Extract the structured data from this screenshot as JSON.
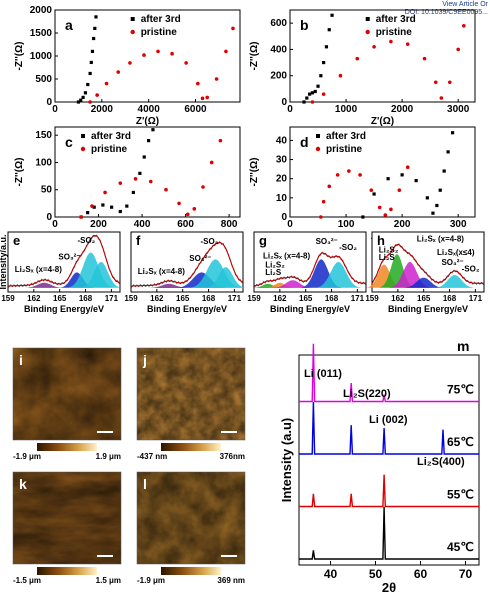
{
  "header": {
    "link1": "View Article Or",
    "link2": "DOI: 10.1039/C9EE0095..."
  },
  "colors": {
    "after": "#000000",
    "pristine": "#e00000"
  },
  "chart_data": [
    {
      "panel": "a",
      "type": "scatter",
      "xlabel": "Z'(Ω)",
      "ylabel": "-Z''(Ω)",
      "xticks": [
        "0",
        "2000",
        "4000",
        "6000"
      ],
      "yticks": [
        "0",
        "500",
        "1000",
        "1500",
        "2000"
      ],
      "xlim": [
        0,
        7900
      ],
      "ylim": [
        0,
        2000
      ],
      "legend": "top-center",
      "series": [
        {
          "name": "after 3rd",
          "style": "after",
          "x": [
            1000,
            1100,
            1200,
            1300,
            1400,
            1500,
            1550,
            1600,
            1650,
            1700,
            1750
          ],
          "y": [
            0,
            40,
            100,
            200,
            380,
            620,
            860,
            1100,
            1380,
            1600,
            1850
          ]
        },
        {
          "name": "pristine",
          "style": "pristine",
          "x": [
            1500,
            1800,
            2200,
            2700,
            3200,
            3800,
            4400,
            5000,
            5600,
            6100,
            6300,
            6500,
            6900,
            7300,
            7600
          ],
          "y": [
            0,
            150,
            400,
            650,
            850,
            1020,
            1100,
            1050,
            850,
            400,
            80,
            100,
            500,
            1100,
            1600
          ]
        }
      ]
    },
    {
      "panel": "b",
      "type": "scatter",
      "xlabel": "Z'(Ω)",
      "ylabel": "-Z''(Ω)",
      "xticks": [
        "0",
        "1000",
        "2000",
        "3000"
      ],
      "yticks": [
        "0",
        "200",
        "400",
        "600"
      ],
      "xlim": [
        0,
        3300
      ],
      "ylim": [
        0,
        700
      ],
      "legend": "top-center",
      "series": [
        {
          "name": "after 3rd",
          "style": "after",
          "x": [
            250,
            300,
            350,
            400,
            450,
            500,
            550,
            600,
            650,
            700,
            750
          ],
          "y": [
            0,
            30,
            60,
            70,
            80,
            120,
            200,
            300,
            420,
            550,
            660
          ]
        },
        {
          "name": "pristine",
          "style": "pristine",
          "x": [
            400,
            600,
            900,
            1200,
            1500,
            1800,
            2100,
            2400,
            2600,
            2700,
            2850,
            3000,
            3100
          ],
          "y": [
            0,
            60,
            200,
            330,
            420,
            460,
            440,
            330,
            150,
            30,
            150,
            400,
            580
          ]
        }
      ]
    },
    {
      "panel": "c",
      "type": "scatter",
      "xlabel": "Z'(Ω)",
      "ylabel": "-Z''(Ω)",
      "xticks": [
        "0",
        "200",
        "400",
        "600",
        "800"
      ],
      "yticks": [
        "0",
        "50",
        "100",
        "150"
      ],
      "xlim": [
        0,
        850
      ],
      "ylim": [
        0,
        165
      ],
      "legend": "top-left",
      "series": [
        {
          "name": "after 3rd",
          "style": "after",
          "x": [
            120,
            150,
            180,
            220,
            260,
            300,
            330,
            360,
            390,
            410,
            430,
            450
          ],
          "y": [
            0,
            8,
            18,
            22,
            18,
            10,
            20,
            45,
            80,
            110,
            140,
            160
          ]
        },
        {
          "name": "pristine",
          "style": "pristine",
          "x": [
            120,
            170,
            230,
            300,
            370,
            440,
            510,
            570,
            610,
            640,
            680,
            720,
            760
          ],
          "y": [
            0,
            20,
            45,
            62,
            70,
            65,
            50,
            25,
            5,
            15,
            55,
            100,
            140
          ]
        }
      ]
    },
    {
      "panel": "d",
      "type": "scatter",
      "xlabel": "Z'(Ω)",
      "ylabel": "-Z''(Ω)",
      "xticks": [
        "0",
        "100",
        "200",
        "300"
      ],
      "yticks": [
        "0",
        "10",
        "20",
        "30",
        "40"
      ],
      "xlim": [
        0,
        330
      ],
      "ylim": [
        0,
        47
      ],
      "legend": "top-left",
      "series": [
        {
          "name": "after 3rd",
          "style": "after",
          "x": [
            130,
            150,
            175,
            200,
            225,
            245,
            255,
            262,
            268,
            275,
            282,
            290
          ],
          "y": [
            0,
            12,
            20,
            22,
            19,
            10,
            2,
            6,
            14,
            24,
            34,
            44
          ]
        },
        {
          "name": "pristine",
          "style": "pristine",
          "x": [
            55,
            60,
            70,
            85,
            105,
            125,
            145,
            160,
            170,
            180,
            195,
            210
          ],
          "y": [
            0,
            8,
            16,
            22,
            24,
            22,
            14,
            5,
            1,
            4,
            14,
            26
          ]
        }
      ]
    },
    {
      "panel": "e",
      "type": "line",
      "xlabel": "Binding Energy/eV",
      "ylabel": "Intensity/a.u.",
      "xticks": [
        "159",
        "162",
        "165",
        "168",
        "171"
      ],
      "xlim": [
        159,
        172
      ],
      "annotations": [
        "-SO₂",
        "SO₃²⁻",
        "Li₂Sₓ (x=4-8)"
      ],
      "peaks": [
        {
          "center": 163.2,
          "height": 0.1,
          "width": 0.8,
          "color": "#7a2a8c"
        },
        {
          "center": 167.0,
          "height": 0.3,
          "width": 0.7,
          "color": "#1428c8"
        },
        {
          "center": 168.6,
          "height": 0.68,
          "width": 0.9,
          "color": "#22c4d8"
        },
        {
          "center": 169.8,
          "height": 0.5,
          "width": 0.8,
          "color": "#22c4d8"
        }
      ]
    },
    {
      "panel": "f",
      "type": "line",
      "xlabel": "Binding Energy/eV",
      "xticks": [
        "159",
        "162",
        "165",
        "168",
        "171"
      ],
      "xlim": [
        159,
        172
      ],
      "annotations": [
        "-SO₂",
        "SO₃²⁻",
        "Li₂Sₓ (x=4-8)"
      ],
      "peaks": [
        {
          "center": 163.4,
          "height": 0.08,
          "width": 0.8,
          "color": "#7a2a8c"
        },
        {
          "center": 167.2,
          "height": 0.3,
          "width": 1.0,
          "color": "#1428c8"
        },
        {
          "center": 168.8,
          "height": 0.55,
          "width": 1.0,
          "color": "#22c4d8"
        },
        {
          "center": 170.0,
          "height": 0.4,
          "width": 0.8,
          "color": "#22c4d8"
        }
      ]
    },
    {
      "panel": "g",
      "type": "line",
      "xlabel": "Binding Energy/eV",
      "xticks": [
        "159",
        "162",
        "165",
        "168",
        "171"
      ],
      "xlim": [
        159,
        172
      ],
      "annotations": [
        "SO₃²⁻",
        "-SO₂",
        "Li₂Sₓ (x=4-8)",
        "Li₂S₂",
        "Li₂S"
      ],
      "peaks": [
        {
          "center": 160.6,
          "height": 0.08,
          "width": 0.6,
          "color": "#22aa22"
        },
        {
          "center": 162.0,
          "height": 0.1,
          "width": 0.6,
          "color": "#ee8822"
        },
        {
          "center": 163.5,
          "height": 0.15,
          "width": 0.8,
          "color": "#cc22cc"
        },
        {
          "center": 166.8,
          "height": 0.55,
          "width": 0.8,
          "color": "#1428c8"
        },
        {
          "center": 168.8,
          "height": 0.5,
          "width": 0.9,
          "color": "#22c4d8"
        }
      ]
    },
    {
      "panel": "h",
      "type": "line",
      "xlabel": "Binding Energy/eV",
      "xticks": [
        "159",
        "162",
        "165",
        "168",
        "171"
      ],
      "xlim": [
        159,
        172
      ],
      "annotations": [
        "Li₂Sₓ (x=4-8)",
        "Li₂Sₓ(x≤4)",
        "Li₂S₂",
        "Li₂S",
        "SO₃²⁻",
        "-SO₂"
      ],
      "peaks": [
        {
          "center": 160.4,
          "height": 0.45,
          "width": 0.7,
          "color": "#ee8822"
        },
        {
          "center": 161.9,
          "height": 0.65,
          "width": 0.7,
          "color": "#22aa22"
        },
        {
          "center": 163.4,
          "height": 0.5,
          "width": 0.8,
          "color": "#cc22cc"
        },
        {
          "center": 165.0,
          "height": 0.2,
          "width": 0.8,
          "color": "#1428c8"
        },
        {
          "center": 168.6,
          "height": 0.25,
          "width": 0.8,
          "color": "#22c4d8"
        }
      ]
    },
    {
      "panel": "m",
      "type": "line",
      "xlabel": "2θ",
      "ylabel": "Intensity (a.u)",
      "xticks": [
        "40",
        "50",
        "60",
        "70"
      ],
      "xlim": [
        33,
        73
      ],
      "peak_labels": [
        "Li (011)",
        "Li₂S(220)",
        "Li (002)",
        "Li₂S(400)"
      ],
      "series": [
        {
          "name": "75℃",
          "color": "#e000e0",
          "peaks": [
            {
              "x": 36.2,
              "h": 1.0
            },
            {
              "x": 44.6,
              "h": 0.32
            },
            {
              "x": 51.9,
              "h": 0.12
            }
          ]
        },
        {
          "name": "65℃",
          "color": "#0000e0",
          "peaks": [
            {
              "x": 36.2,
              "h": 0.9
            },
            {
              "x": 44.6,
              "h": 0.5
            },
            {
              "x": 51.9,
              "h": 0.45
            },
            {
              "x": 65.0,
              "h": 0.42
            }
          ]
        },
        {
          "name": "55℃",
          "color": "#e00000",
          "peaks": [
            {
              "x": 36.2,
              "h": 0.22
            },
            {
              "x": 44.6,
              "h": 0.22
            },
            {
              "x": 51.9,
              "h": 0.55
            }
          ]
        },
        {
          "name": "45℃",
          "color": "#000000",
          "peaks": [
            {
              "x": 36.2,
              "h": 0.15
            },
            {
              "x": 51.9,
              "h": 0.9
            }
          ]
        }
      ]
    }
  ],
  "afm": [
    {
      "panel": "i",
      "min": "-1.9 μm",
      "max": "1.9 μm"
    },
    {
      "panel": "j",
      "min": "-437 nm",
      "max": "376nm"
    },
    {
      "panel": "k",
      "min": "-1.5 μm",
      "max": "1.5 μm"
    },
    {
      "panel": "l",
      "min": "-1.9 μm",
      "max": "369 nm"
    }
  ]
}
